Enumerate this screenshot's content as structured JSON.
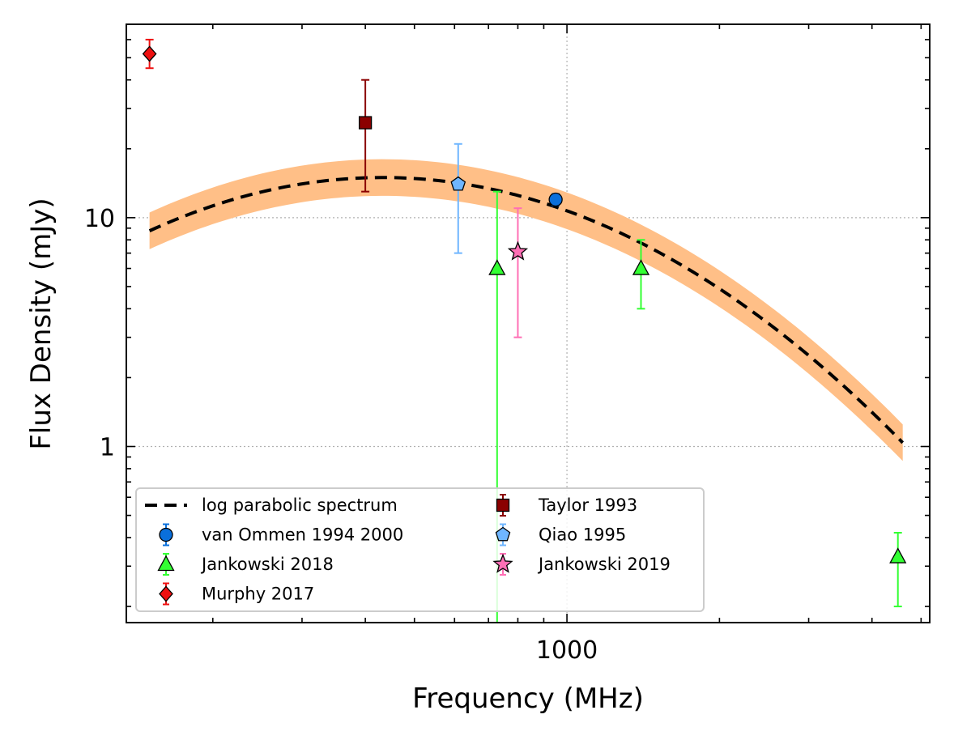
{
  "chart_data": {
    "type": "scatter",
    "xlabel": "Frequency (MHz)",
    "ylabel": "Flux Density (mJy)",
    "xscale": "log",
    "yscale": "log",
    "xlim": [
      135,
      5200
    ],
    "ylim": [
      0.17,
      70
    ],
    "grid": true,
    "legend_placement": "lower-left",
    "x_tick_labels": [
      {
        "value": 1000,
        "label": "1000"
      }
    ],
    "y_tick_labels": [
      {
        "value": 1,
        "label": "1"
      },
      {
        "value": 10,
        "label": "10"
      }
    ],
    "fit": {
      "name": "log parabolic spectrum",
      "style": "dashed",
      "color": "#000000",
      "band_color": "#ffbf87",
      "x_range": [
        150,
        4600
      ],
      "log_params": {
        "a": -0.8,
        "b": -1.1,
        "c": 1.03,
        "x_ref_mhz": 1000
      },
      "band_half_width_dex": 0.08
    },
    "series": [
      {
        "name": "van Ommen 1994 2000",
        "marker": "circle",
        "color": "#0a6fdb",
        "edge": "#000000",
        "err_color": "#0a6fdb",
        "points": [
          {
            "x": 950,
            "y": 12,
            "ylo": 11.3,
            "yhi": 12.7
          }
        ]
      },
      {
        "name": "Jankowski 2018",
        "marker": "triangle",
        "color": "#33ff33",
        "edge": "#000000",
        "err_color": "#33ff33",
        "points": [
          {
            "x": 728,
            "y": 6,
            "ylo": 0.1,
            "yhi": 13
          },
          {
            "x": 1400,
            "y": 6,
            "ylo": 4,
            "yhi": 8
          },
          {
            "x": 4500,
            "y": 0.33,
            "ylo": 0.2,
            "yhi": 0.42
          }
        ]
      },
      {
        "name": "Murphy 2017",
        "marker": "diamond",
        "color": "#ee1111",
        "edge": "#000000",
        "err_color": "#ee1111",
        "points": [
          {
            "x": 150,
            "y": 52,
            "ylo": 45,
            "yhi": 60
          }
        ]
      },
      {
        "name": "Taylor 1993",
        "marker": "square",
        "color": "#8b0000",
        "edge": "#000000",
        "err_color": "#8b0000",
        "points": [
          {
            "x": 400,
            "y": 26,
            "ylo": 13,
            "yhi": 40
          }
        ]
      },
      {
        "name": "Qiao 1995",
        "marker": "pentagon",
        "color": "#6fb6ff",
        "edge": "#000000",
        "err_color": "#6fb6ff",
        "points": [
          {
            "x": 610,
            "y": 14,
            "ylo": 7,
            "yhi": 21
          }
        ]
      },
      {
        "name": "Jankowski 2019",
        "marker": "star",
        "color": "#ff6fb5",
        "edge": "#000000",
        "err_color": "#ff6fb5",
        "points": [
          {
            "x": 800,
            "y": 7.1,
            "ylo": 3,
            "yhi": 11
          }
        ]
      }
    ]
  }
}
